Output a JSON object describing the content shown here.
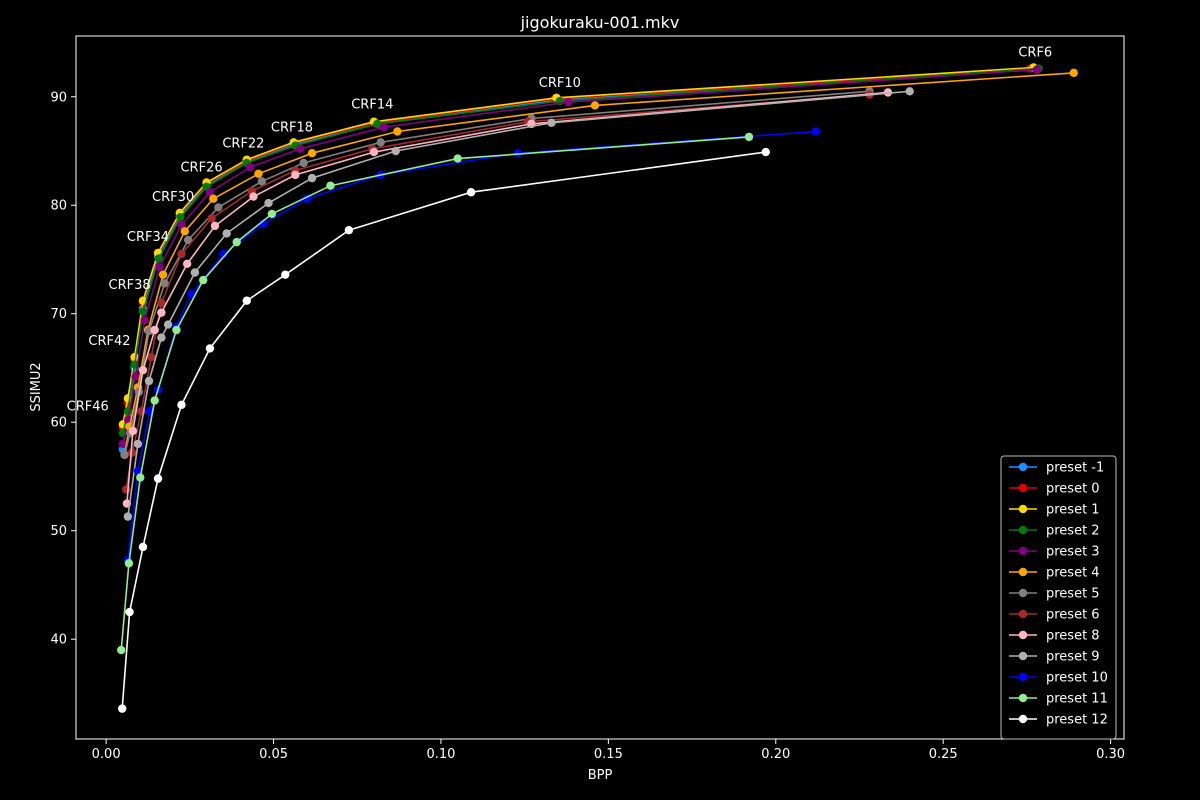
{
  "chart_data": {
    "type": "line",
    "title": "jigokuraku-001.mkv",
    "xlabel": "BPP",
    "ylabel": "SSIMU2",
    "xlim": [
      -0.009,
      0.304
    ],
    "ylim": [
      30.8,
      95.6
    ],
    "xticks": [
      0.0,
      0.05,
      0.1,
      0.15,
      0.2,
      0.25,
      0.3
    ],
    "xtick_labels": [
      "0.00",
      "0.05",
      "0.10",
      "0.15",
      "0.20",
      "0.25",
      "0.30"
    ],
    "yticks": [
      40,
      50,
      60,
      70,
      80,
      90
    ],
    "ytick_labels": [
      "40",
      "50",
      "60",
      "70",
      "80",
      "90"
    ],
    "grid": false,
    "legend_position": "bottom-right",
    "annotations": [
      {
        "text": "CRF6",
        "x": 0.2775,
        "y": 93.7
      },
      {
        "text": "CRF10",
        "x": 0.1355,
        "y": 90.9
      },
      {
        "text": "CRF14",
        "x": 0.0795,
        "y": 88.9
      },
      {
        "text": "CRF18",
        "x": 0.0555,
        "y": 86.8
      },
      {
        "text": "CRF22",
        "x": 0.041,
        "y": 85.3
      },
      {
        "text": "CRF26",
        "x": 0.0285,
        "y": 83.1
      },
      {
        "text": "CRF30",
        "x": 0.02,
        "y": 80.4
      },
      {
        "text": "CRF34",
        "x": 0.0125,
        "y": 76.7
      },
      {
        "text": "CRF38",
        "x": 0.007,
        "y": 72.3
      },
      {
        "text": "CRF42",
        "x": 0.001,
        "y": 67.1
      },
      {
        "text": "CRF46",
        "x": -0.0055,
        "y": 61.1
      }
    ],
    "series": [
      {
        "name": "preset -1",
        "color": "#1f8fff",
        "x": [
          0.005,
          0.0065,
          0.0085,
          0.011,
          0.0155,
          0.022,
          0.03,
          0.042,
          0.056,
          0.081,
          0.135,
          0.278
        ],
        "y": [
          57.5,
          60.5,
          65.0,
          70.5,
          75.3,
          79.0,
          81.8,
          84.0,
          85.6,
          87.5,
          89.7,
          92.5
        ]
      },
      {
        "name": "preset 0",
        "color": "#e00000",
        "x": [
          0.005,
          0.0065,
          0.0085,
          0.011,
          0.0155,
          0.022,
          0.03,
          0.042,
          0.056,
          0.08,
          0.134,
          0.276
        ],
        "y": [
          59.5,
          61.8,
          65.8,
          71.0,
          75.5,
          79.2,
          82.0,
          84.1,
          85.7,
          87.6,
          89.8,
          92.6
        ]
      },
      {
        "name": "preset 1",
        "color": "#ffd700",
        "x": [
          0.005,
          0.0065,
          0.0085,
          0.011,
          0.0155,
          0.022,
          0.03,
          0.042,
          0.056,
          0.08,
          0.1345,
          0.277
        ],
        "y": [
          59.8,
          62.2,
          66.0,
          71.2,
          75.6,
          79.3,
          82.1,
          84.2,
          85.8,
          87.7,
          89.9,
          92.7
        ]
      },
      {
        "name": "preset 2",
        "color": "#007a00",
        "x": [
          0.005,
          0.0065,
          0.0085,
          0.011,
          0.0158,
          0.0222,
          0.03,
          0.042,
          0.0565,
          0.081,
          0.1355,
          0.2785
        ],
        "y": [
          59.0,
          61.0,
          65.3,
          70.2,
          75.1,
          78.9,
          81.7,
          83.9,
          85.5,
          87.5,
          89.6,
          92.6
        ]
      },
      {
        "name": "preset 3",
        "color": "#800080",
        "x": [
          0.005,
          0.0066,
          0.0088,
          0.0115,
          0.016,
          0.0225,
          0.031,
          0.043,
          0.058,
          0.083,
          0.138,
          0.278
        ],
        "y": [
          58.0,
          60.2,
          64.2,
          69.4,
          74.3,
          78.2,
          81.2,
          83.5,
          85.2,
          87.2,
          89.5,
          92.5
        ]
      },
      {
        "name": "preset 4",
        "color": "#ffa500",
        "x": [
          0.0055,
          0.007,
          0.0095,
          0.0125,
          0.017,
          0.0235,
          0.032,
          0.0455,
          0.0615,
          0.087,
          0.146,
          0.289
        ],
        "y": [
          57.0,
          59.6,
          63.2,
          68.5,
          73.6,
          77.6,
          80.6,
          82.9,
          84.8,
          86.8,
          89.2,
          92.2
        ]
      },
      {
        "name": "preset 5",
        "color": "#808080",
        "x": [
          0.0055,
          0.0072,
          0.0098,
          0.0128,
          0.0175,
          0.0245,
          0.0335,
          0.0465,
          0.059,
          0.082,
          0.127,
          0.228
        ],
        "y": [
          57.0,
          59.0,
          62.8,
          68.4,
          72.8,
          76.8,
          79.8,
          82.2,
          83.9,
          85.8,
          88.0,
          90.5
        ]
      },
      {
        "name": "preset 6",
        "color": "#a52a2a",
        "x": [
          0.006,
          0.0078,
          0.0105,
          0.0135,
          0.0165,
          0.0225,
          0.0315,
          0.0435,
          0.0565,
          0.0795,
          0.126,
          0.228
        ],
        "y": [
          53.8,
          57.2,
          61.0,
          66.0,
          71.0,
          75.5,
          78.8,
          81.3,
          83.2,
          85.2,
          87.7,
          90.2
        ]
      },
      {
        "name": "preset 8",
        "color": "#ffb6c1",
        "x": [
          0.0062,
          0.008,
          0.011,
          0.0145,
          0.0165,
          0.0242,
          0.0325,
          0.044,
          0.0565,
          0.08,
          0.127,
          0.2335
        ],
        "y": [
          52.5,
          59.2,
          64.8,
          68.5,
          70.1,
          74.6,
          78.1,
          80.8,
          82.8,
          84.9,
          87.5,
          90.4
        ]
      },
      {
        "name": "preset 9",
        "color": "#b0b0b0",
        "x": [
          0.0065,
          0.0095,
          0.0128,
          0.0165,
          0.0185,
          0.0265,
          0.036,
          0.0485,
          0.0615,
          0.0865,
          0.133,
          0.24
        ],
        "y": [
          51.3,
          58.0,
          63.8,
          67.8,
          69.0,
          73.8,
          77.4,
          80.2,
          82.5,
          85.0,
          87.6,
          90.5
        ]
      },
      {
        "name": "preset 10",
        "color": "#0000ff",
        "x": [
          0.0065,
          0.0095,
          0.013,
          0.0155,
          0.021,
          0.0255,
          0.035,
          0.047,
          0.06,
          0.082,
          0.123,
          0.212
        ],
        "y": [
          47.3,
          55.5,
          61.0,
          63.0,
          68.8,
          71.8,
          75.5,
          78.3,
          80.6,
          82.8,
          84.8,
          86.8
        ]
      },
      {
        "name": "preset 11",
        "color": "#90ee90",
        "x": [
          0.0045,
          0.0068,
          0.0102,
          0.0145,
          0.021,
          0.029,
          0.039,
          0.0495,
          0.067,
          0.105,
          0.192
        ],
        "y": [
          39.0,
          47.0,
          54.9,
          62.0,
          68.5,
          73.1,
          76.6,
          79.2,
          81.8,
          84.3,
          86.3
        ]
      },
      {
        "name": "preset 12",
        "color": "#ffffff",
        "x": [
          0.0048,
          0.007,
          0.011,
          0.0155,
          0.0225,
          0.031,
          0.042,
          0.0535,
          0.0725,
          0.109,
          0.197
        ],
        "y": [
          33.6,
          42.5,
          48.5,
          54.8,
          61.6,
          66.8,
          71.2,
          73.6,
          77.7,
          81.2,
          84.9
        ]
      }
    ]
  }
}
